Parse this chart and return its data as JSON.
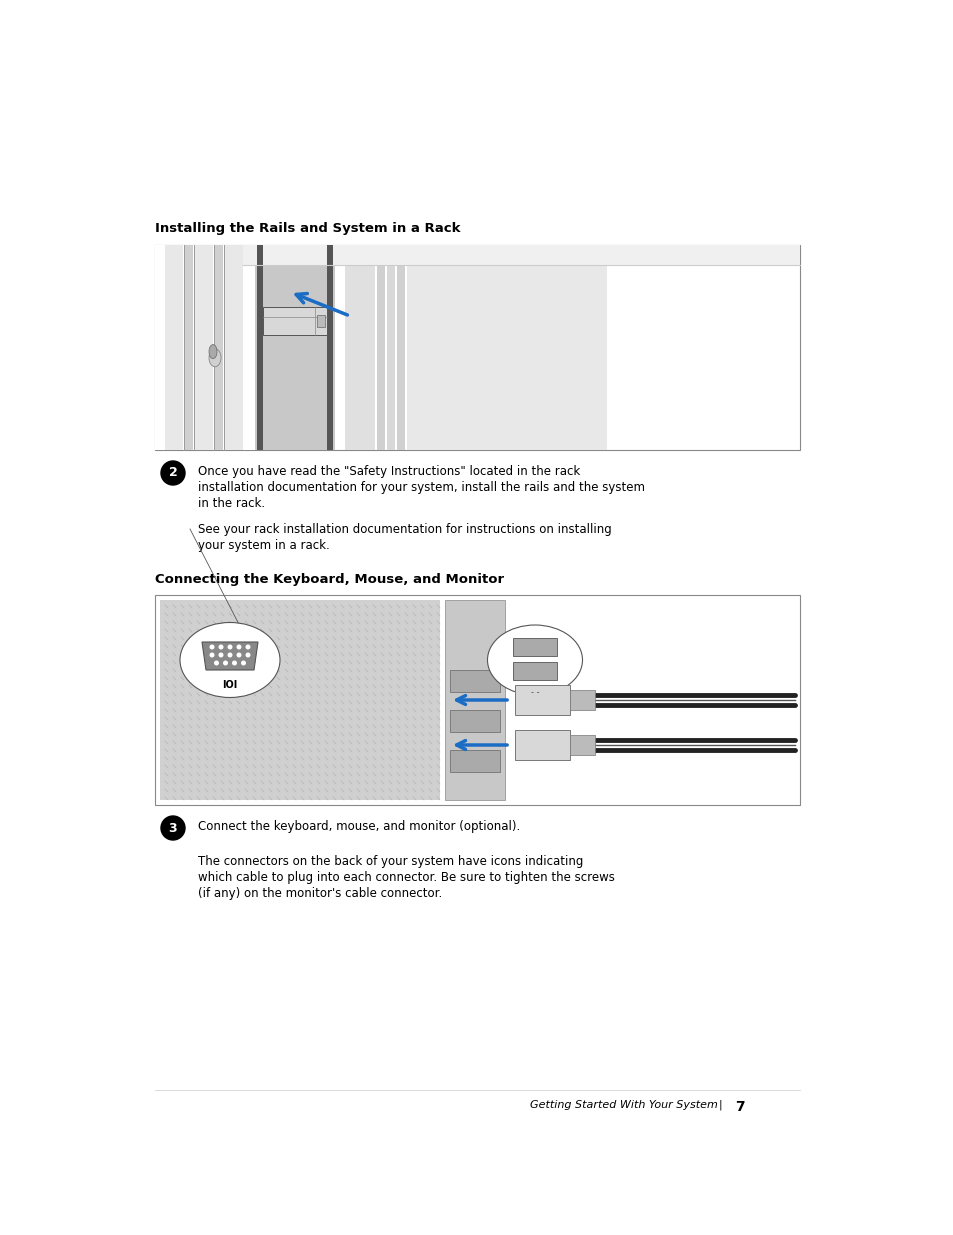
{
  "bg_color": "#ffffff",
  "page_width": 9.54,
  "page_height": 12.35,
  "font_color": "#000000",
  "section1_title": "Installing the Rails and System in a Rack",
  "section2_title": "Connecting the Keyboard, Mouse, and Monitor",
  "step2_line1": "Once you have read the \"Safety Instructions\" located in the rack",
  "step2_line2": "installation documentation for your system, install the rails and the system",
  "step2_line3": "in the rack.",
  "step2_para2_line1": "See your rack installation documentation for instructions on installing",
  "step2_para2_line2": "your system in a rack.",
  "step3_line1": "Connect the keyboard, mouse, and monitor (optional).",
  "step3_para2_line1": "The connectors on the back of your system have icons indicating",
  "step3_para2_line2": "which cable to plug into each connector. Be sure to tighten the screws",
  "step3_para2_line3": "(if any) on the monitor's cable connector.",
  "footer_text": "Getting Started With Your System",
  "footer_page": "7",
  "title_fontsize": 9.5,
  "body_fontsize": 8.5,
  "footer_fontsize": 8.0,
  "border_color": "#555555"
}
